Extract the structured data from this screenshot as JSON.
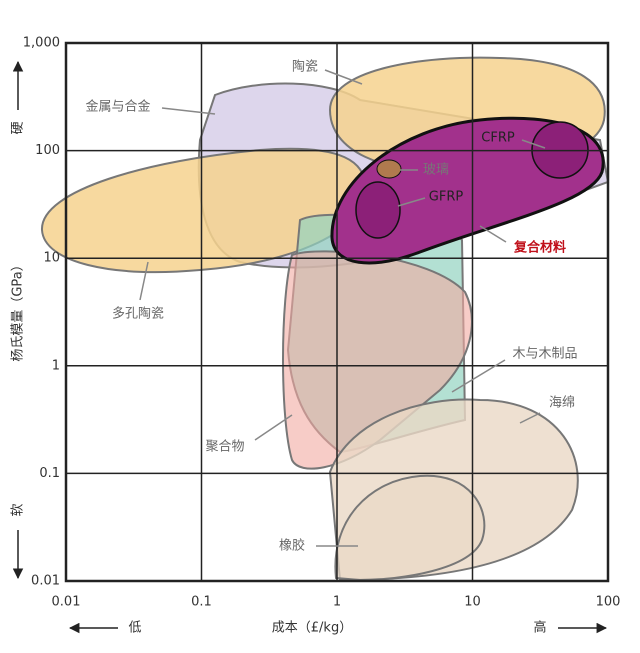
{
  "chart_data": {
    "type": "region-chart",
    "x_label": "成本（£/kg）",
    "y_label": "杨氏模量（GPa）",
    "x_low": "低",
    "x_high": "高",
    "y_high": "硬",
    "y_low": "软",
    "x_scale": "log",
    "y_scale": "log",
    "xlim": [
      0.01,
      100
    ],
    "ylim": [
      0.01,
      1000
    ],
    "xticks": [
      0.01,
      0.1,
      1,
      10,
      100
    ],
    "yticks": [
      0.01,
      0.1,
      1,
      10,
      100,
      {
        "value": 1000,
        "label": "1,000"
      }
    ],
    "grid": true,
    "regions": [
      {
        "name": "金属与合金",
        "color": "#d9d2ea"
      },
      {
        "name": "陶瓷",
        "color": "#f6d28e"
      },
      {
        "name": "多孔陶瓷",
        "color": "#f6d28e"
      },
      {
        "name": "木与木制品",
        "color": "#93d3c0"
      },
      {
        "name": "聚合物",
        "color": "#f2aaa2"
      },
      {
        "name": "海绵",
        "color": "#ead8c6"
      },
      {
        "name": "橡胶",
        "color": "#ead8c6"
      },
      {
        "name": "复合材料",
        "color": "#a2318c"
      },
      {
        "name": "玻璃",
        "color": "#b07a4e"
      },
      {
        "name": "CFRP",
        "color": "#8c2078"
      },
      {
        "name": "GFRP",
        "color": "#8c2078"
      }
    ]
  }
}
